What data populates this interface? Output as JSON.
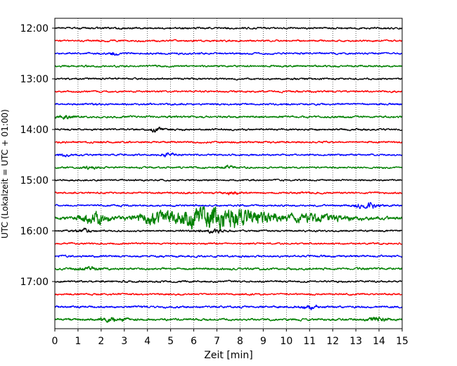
{
  "chart_data": {
    "type": "line",
    "title": "",
    "xlabel": "Zeit  [min]",
    "ylabel": "UTC (Lokalzeit = UTC + 01:00)",
    "xlim": [
      0,
      15
    ],
    "x_ticks": [
      "0",
      "1",
      "2",
      "3",
      "4",
      "5",
      "6",
      "7",
      "8",
      "9",
      "10",
      "11",
      "12",
      "13",
      "14",
      "15"
    ],
    "y_ticks": [
      "12:00",
      "13:00",
      "14:00",
      "15:00",
      "16:00",
      "17:00"
    ],
    "grid": "vertical dotted",
    "trace_interval_minutes": 15,
    "traces_start": "12:00",
    "traces_count": 24,
    "trace_colors": [
      "#000000",
      "#ff0000",
      "#0000ff",
      "#008000"
    ],
    "series": [
      {
        "start": "12:00",
        "color": "#000000",
        "amplitude": 1.0,
        "events": []
      },
      {
        "start": "12:15",
        "color": "#ff0000",
        "amplitude": 1.0,
        "events": []
      },
      {
        "start": "12:30",
        "color": "#0000ff",
        "amplitude": 1.0,
        "events": [
          {
            "x": 2.5,
            "strength": 1.8,
            "width": 0.2
          }
        ]
      },
      {
        "start": "12:45",
        "color": "#008000",
        "amplitude": 1.0,
        "events": []
      },
      {
        "start": "13:00",
        "color": "#000000",
        "amplitude": 1.0,
        "events": []
      },
      {
        "start": "13:15",
        "color": "#ff0000",
        "amplitude": 1.0,
        "events": []
      },
      {
        "start": "13:30",
        "color": "#0000ff",
        "amplitude": 1.0,
        "events": []
      },
      {
        "start": "13:45",
        "color": "#008000",
        "amplitude": 1.1,
        "events": [
          {
            "x": 0.5,
            "strength": 1.5,
            "width": 0.5
          }
        ]
      },
      {
        "start": "14:00",
        "color": "#000000",
        "amplitude": 1.0,
        "events": [
          {
            "x": 4.4,
            "strength": 2.5,
            "width": 0.25
          }
        ]
      },
      {
        "start": "14:15",
        "color": "#ff0000",
        "amplitude": 1.0,
        "events": []
      },
      {
        "start": "14:30",
        "color": "#0000ff",
        "amplitude": 1.0,
        "events": [
          {
            "x": 4.9,
            "strength": 1.8,
            "width": 0.3
          },
          {
            "x": 0.4,
            "strength": 1.4,
            "width": 0.3
          }
        ]
      },
      {
        "start": "14:45",
        "color": "#008000",
        "amplitude": 1.0,
        "events": [
          {
            "x": 1.5,
            "strength": 1.5,
            "width": 0.3
          },
          {
            "x": 7.5,
            "strength": 1.5,
            "width": 0.3
          }
        ]
      },
      {
        "start": "15:00",
        "color": "#000000",
        "amplitude": 0.9,
        "events": []
      },
      {
        "start": "15:15",
        "color": "#ff0000",
        "amplitude": 1.0,
        "events": [
          {
            "x": 7.7,
            "strength": 1.4,
            "width": 0.3
          }
        ]
      },
      {
        "start": "15:30",
        "color": "#0000ff",
        "amplitude": 1.0,
        "events": [
          {
            "x": 13.5,
            "strength": 2.8,
            "width": 0.5
          }
        ]
      },
      {
        "start": "15:45",
        "color": "#008000",
        "amplitude": 1.8,
        "events": [
          {
            "x": 1.7,
            "strength": 3.0,
            "width": 0.6
          },
          {
            "x": 4.5,
            "strength": 3.2,
            "width": 1.0
          },
          {
            "x": 6.5,
            "strength": 7.0,
            "width": 1.2
          },
          {
            "x": 8.2,
            "strength": 4.0,
            "width": 1.2
          },
          {
            "x": 11.0,
            "strength": 2.0,
            "width": 1.5
          }
        ]
      },
      {
        "start": "16:00",
        "color": "#000000",
        "amplitude": 1.0,
        "events": [
          {
            "x": 1.3,
            "strength": 1.3,
            "width": 0.4
          },
          {
            "x": 6.8,
            "strength": 1.4,
            "width": 0.5
          }
        ]
      },
      {
        "start": "16:15",
        "color": "#ff0000",
        "amplitude": 1.0,
        "events": []
      },
      {
        "start": "16:30",
        "color": "#0000ff",
        "amplitude": 1.1,
        "events": []
      },
      {
        "start": "16:45",
        "color": "#008000",
        "amplitude": 1.2,
        "events": [
          {
            "x": 1.4,
            "strength": 1.4,
            "width": 0.4
          }
        ]
      },
      {
        "start": "17:00",
        "color": "#000000",
        "amplitude": 1.0,
        "events": []
      },
      {
        "start": "17:15",
        "color": "#ff0000",
        "amplitude": 1.0,
        "events": []
      },
      {
        "start": "17:30",
        "color": "#0000ff",
        "amplitude": 1.1,
        "events": [
          {
            "x": 11.0,
            "strength": 1.4,
            "width": 0.4
          }
        ]
      },
      {
        "start": "17:45",
        "color": "#008000",
        "amplitude": 1.2,
        "events": [
          {
            "x": 2.5,
            "strength": 1.6,
            "width": 0.6
          },
          {
            "x": 13.9,
            "strength": 1.8,
            "width": 0.4
          }
        ]
      }
    ]
  }
}
